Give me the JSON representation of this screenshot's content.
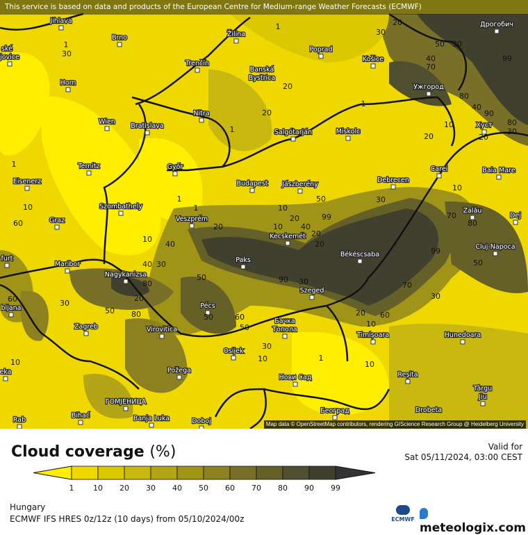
{
  "banner": "This service is based on data and products of the European Centre for Medium-range Weather Forecasts (ECMWF)",
  "attribution": "Map data © OpenStreetMap contributors, rendering GIScience Research Group @ Heidelberg University",
  "title": "Cloud coverage",
  "unit": "(%)",
  "valid_label": "Valid for",
  "valid_time": "Sat 05/11/2024, 03:00 CEST",
  "region": "Hungary",
  "model": "ECMWF IFS HRES 0z/12z (10 days) from  05/10/2024/00z",
  "ecmwf_logo": "ECMWF",
  "brand": "meteologix.com",
  "legend": {
    "ticks": [
      "1",
      "10",
      "20",
      "30",
      "40",
      "50",
      "60",
      "70",
      "80",
      "90",
      "99"
    ],
    "colors": [
      "#ffee00",
      "#eed800",
      "#dcc800",
      "#c8b810",
      "#b4a418",
      "#a09418",
      "#8c8020",
      "#787028",
      "#646028",
      "#505030",
      "#40402e",
      "#333333"
    ]
  },
  "cities": [
    "Jihlava",
    "Brno",
    "Žilina",
    "Poprad",
    "Дрогобич",
    "Trenčín",
    "Banská",
    "Bystrica",
    "Košice",
    "Ужгород",
    "Horn",
    "Nitra",
    "Wien",
    "Bratislava",
    "Salgótarján",
    "Miskolc",
    "Хуст",
    "Ternitz",
    "Győr",
    "Budapest",
    "Jászberény",
    "Debrecen",
    "Carei",
    "Baia Mare",
    "Eisenerz",
    "Szombathely",
    "Veszprém",
    "Zalău",
    "Graz",
    "Kecskemét",
    "Dej",
    "Cluj-Napoca",
    "Paks",
    "Békéscsaba",
    "Maribor",
    "Nagykanizsa",
    "Szeged",
    "Pécs",
    "Zagreb",
    "Virovitica",
    "Бачка",
    "Топола",
    "Timișoara",
    "Hunedoara",
    "Osijek",
    "Požega",
    "Нови Сад",
    "Reșita",
    "Târgu",
    "Jiu",
    "ГОМЈЕНИЦА",
    "Bihać",
    "Banja Luka",
    "Doboj",
    "Београд",
    "Drobeta",
    "bljana",
    "furt",
    "eka",
    "Rab",
    "ské",
    "jovice"
  ],
  "contour_labels": [
    "1",
    "30",
    "20",
    "99",
    "1",
    "50",
    "30",
    "40",
    "70",
    "80",
    "40",
    "90",
    "80",
    "30",
    "1",
    "20",
    "20",
    "10",
    "20",
    "20",
    "1",
    "10",
    "40",
    "20",
    "10",
    "20",
    "30",
    "50",
    "99",
    "10",
    "70",
    "80",
    "50",
    "10",
    "20",
    "40",
    "60",
    "99",
    "1",
    "10",
    "40",
    "30",
    "50",
    "80",
    "30",
    "50",
    "90",
    "30",
    "70",
    "30",
    "60",
    "50",
    "60",
    "20",
    "10",
    "20",
    "10",
    "30",
    "1",
    "10",
    "10",
    "20",
    "1",
    "60",
    "30",
    "50",
    "1",
    "80"
  ]
}
